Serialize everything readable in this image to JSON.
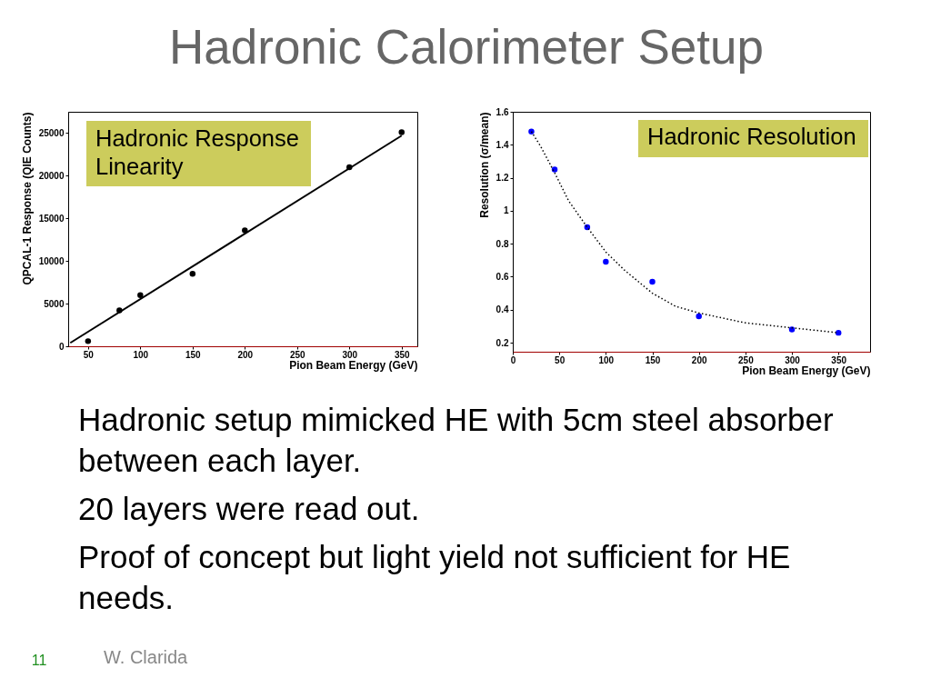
{
  "chart_data": [
    {
      "type": "other",
      "title": "Hadronic Calorimeter Setup"
    },
    {
      "type": "scatter",
      "xlabel": "Pion Beam Energy (GeV)",
      "ylabel": "QPCAL-1 Response (QIE Counts)",
      "annotations": [
        "Hadronic Response\nLinearity"
      ],
      "xlim": [
        31,
        365
      ],
      "ylim": [
        0,
        27500
      ],
      "xticks": [
        50,
        100,
        150,
        200,
        250,
        300,
        350
      ],
      "yticks": [
        0,
        5000,
        10000,
        15000,
        20000,
        25000
      ],
      "series": [
        {
          "type": "scatter",
          "marker": "circle",
          "color": "#000000",
          "x": [
            50,
            80,
            100,
            150,
            200,
            300,
            350
          ],
          "values": [
            600,
            4200,
            6000,
            8500,
            13600,
            21000,
            25100
          ]
        },
        {
          "type": "line",
          "line_style": "solid",
          "color": "#000000",
          "x": [
            33,
            350
          ],
          "values": [
            400,
            24700
          ]
        }
      ]
    },
    {
      "type": "scatter",
      "xlabel": "Pion Beam Energy (GeV)",
      "ylabel": "Resolution (σ/mean)",
      "annotations": [
        "Hadronic Resolution"
      ],
      "xlim": [
        0,
        384
      ],
      "ylim": [
        0.145,
        1.6
      ],
      "xticks": [
        0,
        50,
        100,
        150,
        200,
        250,
        300,
        350
      ],
      "yticks": [
        0.2,
        0.4,
        0.6,
        0.8,
        1,
        1.2,
        1.4,
        1.6
      ],
      "series": [
        {
          "type": "scatter",
          "marker": "circle",
          "color": "#0000ff",
          "x": [
            20,
            45,
            80,
            100,
            150,
            200,
            300,
            350
          ],
          "values": [
            1.48,
            1.25,
            0.9,
            0.69,
            0.57,
            0.36,
            0.28,
            0.26
          ]
        },
        {
          "type": "line",
          "line_style": "dotted",
          "color": "#000000",
          "x": [
            20,
            30,
            45,
            60,
            80,
            100,
            120,
            150,
            175,
            200,
            250,
            300,
            350
          ],
          "values": [
            1.48,
            1.39,
            1.23,
            1.06,
            0.9,
            0.75,
            0.64,
            0.5,
            0.42,
            0.38,
            0.32,
            0.29,
            0.26
          ]
        }
      ]
    },
    {
      "type": "other",
      "annotations": [
        "Hadronic setup mimicked HE with 5cm steel absorber between each layer.",
        "20 layers were read out.",
        "Proof of concept but light yield not sufficient for HE needs."
      ]
    },
    {
      "type": "other",
      "annotations": [
        "11",
        "W. Clarida"
      ]
    }
  ]
}
